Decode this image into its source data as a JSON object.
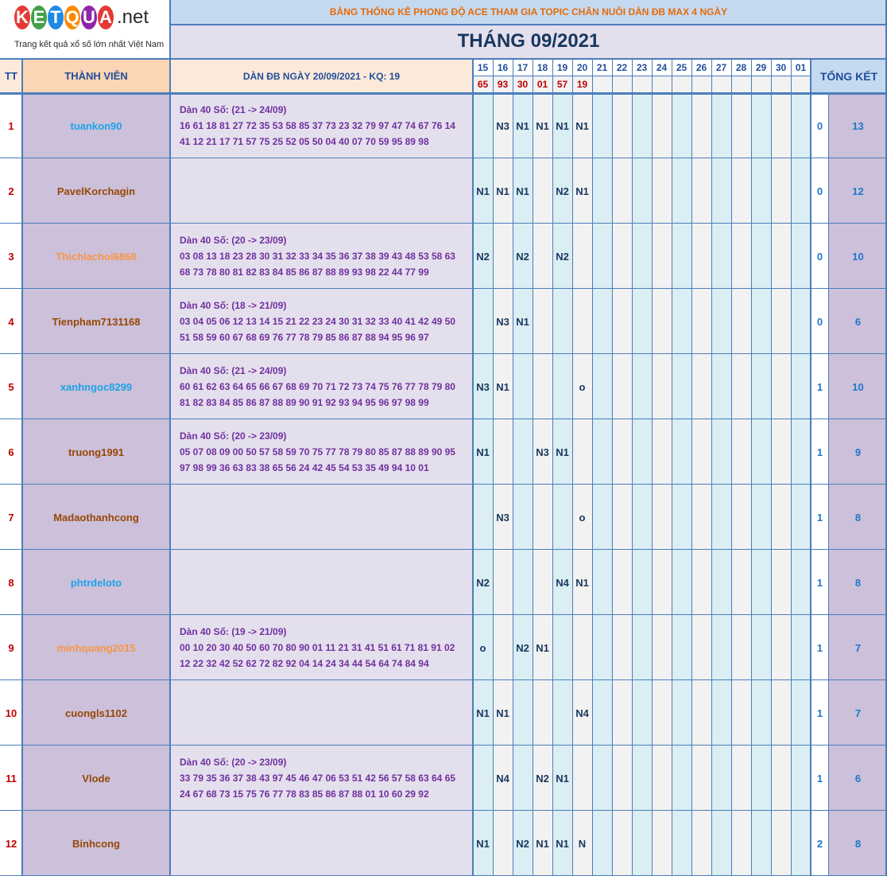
{
  "logo": {
    "letters": [
      "K",
      "E",
      "T",
      "Q",
      "U",
      "A"
    ],
    "letter_colors": [
      "#e53935",
      "#43a047",
      "#1e88e5",
      "#fb8c00",
      "#8e24aa",
      "#e53935"
    ],
    "suffix": ".net",
    "tagline": "Trang kết quả xổ số lớn nhất Việt Nam"
  },
  "header": {
    "subtitle": "BẢNG THỐNG KÊ PHONG ĐỘ ACE THAM GIA TOPIC CHĂN NUÔI DÀN ĐB MAX 4 NGÀY",
    "month_title": "THÁNG 09/2021",
    "col_tt": "TT",
    "col_member": "THÀNH VIÊN",
    "col_dan": "DÀN ĐB NGÀY 20/09/2021 - KQ: 19",
    "col_total": "TỔNG KẾT"
  },
  "days": [
    "15",
    "16",
    "17",
    "18",
    "19",
    "20",
    "21",
    "22",
    "23",
    "24",
    "25",
    "26",
    "27",
    "28",
    "29",
    "30",
    "01"
  ],
  "results": [
    "65",
    "93",
    "30",
    "01",
    "57",
    "19",
    "",
    "",
    "",
    "",
    "",
    "",
    "",
    "",
    "",
    "",
    ""
  ],
  "colors": {
    "accent_orange": "#e46c0a",
    "header_blue": "#1f4e9c",
    "title_navy": "#17375e",
    "stt_red": "#c00000",
    "note_purple": "#7030a0",
    "grid_blue": "#4a7ebb",
    "light_cyan": "#daeef3",
    "lavender": "#e4dfec",
    "mauve": "#ccc0da",
    "peach": "#fde9d9"
  },
  "rows": [
    {
      "stt": "1",
      "name": "tuankon90",
      "name_color": "#1ca3e8",
      "note": [
        "Dàn 40 Số: (21 -> 24/09)",
        "16 61 18 81 27 72 35 53 58 85 37 73 23 32 79 97 47 74 67 76 14",
        "41 12 21 17 71 57 75 25 52 05 50 04 40 07 70 59 95 89 98"
      ],
      "cells": [
        "",
        "N3",
        "N1",
        "N1",
        "N1",
        "N1",
        "",
        "",
        "",
        "",
        "",
        "",
        "",
        "",
        "",
        "",
        ""
      ],
      "win": "0",
      "total": "13"
    },
    {
      "stt": "2",
      "name": "PavelKorchagin",
      "name_color": "#974706",
      "note": [],
      "cells": [
        "N1",
        "N1",
        "N1",
        "",
        "N2",
        "N1",
        "",
        "",
        "",
        "",
        "",
        "",
        "",
        "",
        "",
        "",
        ""
      ],
      "win": "0",
      "total": "12"
    },
    {
      "stt": "3",
      "name": "Thichlachoi6868",
      "name_color": "#f79646",
      "note": [
        "Dàn 40 Số: (20 -> 23/09)",
        "03 08 13 18 23 28 30 31 32 33 34 35 36 37 38 39 43 48 53 58 63",
        "68 73 78 80 81 82 83 84 85 86 87 88 89 93 98 22 44 77 99"
      ],
      "cells": [
        "N2",
        "",
        "N2",
        "",
        "N2",
        "",
        "",
        "",
        "",
        "",
        "",
        "",
        "",
        "",
        "",
        "",
        ""
      ],
      "win": "0",
      "total": "10"
    },
    {
      "stt": "4",
      "name": "Tienpham7131168",
      "name_color": "#974706",
      "note": [
        "Dàn 40 Số: (18 -> 21/09)",
        "03 04 05 06 12 13 14 15 21 22 23 24 30 31 32 33 40 41 42 49 50",
        "51 58 59 60 67 68 69 76 77 78 79 85 86 87 88 94 95 96 97"
      ],
      "cells": [
        "",
        "N3",
        "N1",
        "",
        "",
        "",
        "",
        "",
        "",
        "",
        "",
        "",
        "",
        "",
        "",
        "",
        ""
      ],
      "win": "0",
      "total": "6"
    },
    {
      "stt": "5",
      "name": "xanhngoc8299",
      "name_color": "#1ca3e8",
      "note": [
        "Dàn 40 Số: (21 -> 24/09)",
        "60 61 62 63 64 65 66 67 68 69 70 71 72 73 74 75 76 77 78 79 80",
        "81 82 83 84 85 86 87 88 89 90 91 92 93 94 95 96 97 98 99"
      ],
      "cells": [
        "N3",
        "N1",
        "",
        "",
        "",
        "o",
        "",
        "",
        "",
        "",
        "",
        "",
        "",
        "",
        "",
        "",
        ""
      ],
      "win": "1",
      "total": "10"
    },
    {
      "stt": "6",
      "name": "truong1991",
      "name_color": "#974706",
      "note": [
        "Dàn 40 Số: (20 -> 23/09)",
        "05 07 08 09 00 50 57 58 59 70 75 77 78 79 80 85 87 88 89 90 95",
        "97 98 99 36 63 83 38 65 56 24 42 45 54 53 35 49 94 10 01"
      ],
      "cells": [
        "N1",
        "",
        "",
        "N3",
        "N1",
        "",
        "",
        "",
        "",
        "",
        "",
        "",
        "",
        "",
        "",
        "",
        ""
      ],
      "win": "1",
      "total": "9"
    },
    {
      "stt": "7",
      "name": "Madaothanhcong",
      "name_color": "#974706",
      "note": [],
      "cells": [
        "",
        "N3",
        "",
        "",
        "",
        "o",
        "",
        "",
        "",
        "",
        "",
        "",
        "",
        "",
        "",
        "",
        ""
      ],
      "win": "1",
      "total": "8"
    },
    {
      "stt": "8",
      "name": "phtrdeloto",
      "name_color": "#1ca3e8",
      "note": [],
      "cells": [
        "N2",
        "",
        "",
        "",
        "N4",
        "N1",
        "",
        "",
        "",
        "",
        "",
        "",
        "",
        "",
        "",
        "",
        ""
      ],
      "win": "1",
      "total": "8"
    },
    {
      "stt": "9",
      "name": "minhquang2015",
      "name_color": "#f79646",
      "note": [
        "Dàn 40 Số: (19 -> 21/09)",
        "00 10 20 30 40 50 60 70 80 90 01 11 21 31 41 51 61 71 81 91 02",
        "12 22 32 42 52 62 72 82 92 04 14 24 34 44 54 64 74 84 94"
      ],
      "cells": [
        "o",
        "",
        "N2",
        "N1",
        "",
        "",
        "",
        "",
        "",
        "",
        "",
        "",
        "",
        "",
        "",
        "",
        ""
      ],
      "win": "1",
      "total": "7"
    },
    {
      "stt": "10",
      "name": "cuongls1102",
      "name_color": "#974706",
      "note": [],
      "cells": [
        "N1",
        "N1",
        "",
        "",
        "",
        "N4",
        "",
        "",
        "",
        "",
        "",
        "",
        "",
        "",
        "",
        "",
        ""
      ],
      "win": "1",
      "total": "7"
    },
    {
      "stt": "11",
      "name": "Vlode",
      "name_color": "#974706",
      "note": [
        "Dàn 40 Số: (20 -> 23/09)",
        "33 79 35 36 37 38 43 97 45 46 47 06 53 51 42 56 57 58 63 64 65",
        "24 67 68 73 15 75 76 77 78 83 85 86 87 88 01 10 60 29 92"
      ],
      "cells": [
        "",
        "N4",
        "",
        "N2",
        "N1",
        "",
        "",
        "",
        "",
        "",
        "",
        "",
        "",
        "",
        "",
        "",
        ""
      ],
      "win": "1",
      "total": "6"
    },
    {
      "stt": "12",
      "name": "Binhcong",
      "name_color": "#974706",
      "note": [],
      "cells": [
        "N1",
        "",
        "N2",
        "N1",
        "N1",
        "N",
        "",
        "",
        "",
        "",
        "",
        "",
        "",
        "",
        "",
        "",
        ""
      ],
      "win": "2",
      "total": "8"
    }
  ]
}
